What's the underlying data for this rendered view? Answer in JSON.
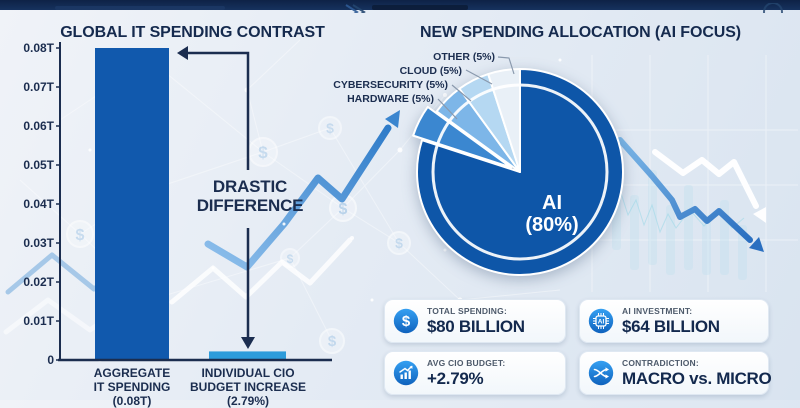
{
  "left_chart": {
    "title": "GLOBAL IT SPENDING CONTRAST",
    "annotation_lines": [
      "DRASTIC",
      "DIFFERENCE"
    ],
    "bar_labels": [
      [
        "AGGREGATE",
        "IT SPENDING",
        "(0.08T)"
      ],
      [
        "INDIVIDUAL CIO",
        "BUDGET INCREASE",
        "(2.79%)"
      ]
    ]
  },
  "right_chart": {
    "title": "NEW SPENDING ALLOCATION (AI FOCUS)",
    "callouts": [
      {
        "text": "OTHER (5%)"
      },
      {
        "text": "CLOUD (5%)"
      },
      {
        "text": "CYBERSECURITY (5%)"
      },
      {
        "text": "HARDWARE (5%)"
      }
    ],
    "center_label_lines": [
      "AI",
      "(80%)"
    ]
  },
  "chart_data": [
    {
      "type": "bar",
      "title": "GLOBAL IT SPENDING CONTRAST",
      "categories": [
        "AGGREGATE IT SPENDING (0.08T)",
        "INDIVIDUAL CIO BUDGET INCREASE (2.79%)"
      ],
      "values": [
        0.08,
        0.0022
      ],
      "unit": "T (trillions USD)",
      "ylim": [
        0,
        0.08
      ],
      "yticks": [
        {
          "label": "0.08T",
          "v": 0.08
        },
        {
          "label": "0.07T",
          "v": 0.07
        },
        {
          "label": "0.06T",
          "v": 0.06
        },
        {
          "label": "0.05T",
          "v": 0.05
        },
        {
          "label": "0.04T",
          "v": 0.04
        },
        {
          "label": "0.03T",
          "v": 0.03
        },
        {
          "label": "0.02T",
          "v": 0.02
        },
        {
          "label": "0.01T",
          "v": 0.01
        },
        {
          "label": "0",
          "v": 0
        }
      ],
      "bar_colors": [
        "#1159ad",
        "#2d9cdb"
      ],
      "annotation": "DRASTIC DIFFERENCE",
      "grid": false
    },
    {
      "type": "pie",
      "title": "NEW SPENDING ALLOCATION (AI FOCUS)",
      "start": "top",
      "direction": "clockwise",
      "slices": [
        {
          "label": "AI (80%)",
          "pct": 80,
          "color": "#0e56a8"
        },
        {
          "label": "HARDWARE (5%)",
          "pct": 5,
          "color": "#3b87d0",
          "explode": 10
        },
        {
          "label": "CYBERSECURITY (5%)",
          "pct": 5,
          "color": "#7db6e8"
        },
        {
          "label": "CLOUD (5%)",
          "pct": 5,
          "color": "#b5d8f2"
        },
        {
          "label": "OTHER (5%)",
          "pct": 5,
          "color": "#e9f0f7"
        }
      ]
    }
  ],
  "stats": {
    "cards": [
      {
        "icon": "dollar-icon",
        "label": "TOTAL SPENDING:",
        "value": "$80 BILLION"
      },
      {
        "icon": "ai-chip-icon",
        "label": "AI INVESTMENT:",
        "value": "$64 BILLION"
      },
      {
        "icon": "growth-chart-icon",
        "label": "AVG CIO BUDGET:",
        "value": "+2.79%"
      },
      {
        "icon": "shuffle-icon",
        "label": "CONTRADICTION:",
        "value": "MACRO vs. MICRO"
      }
    ]
  },
  "colors": {
    "ai_dark_blue": "#0e56a8",
    "bright_blue": "#2d9cdb",
    "navy_text": "#1b2d4f",
    "header_bar": "#12294c",
    "background": "#e7edf4",
    "icon_circle": "#1f7ae0"
  }
}
